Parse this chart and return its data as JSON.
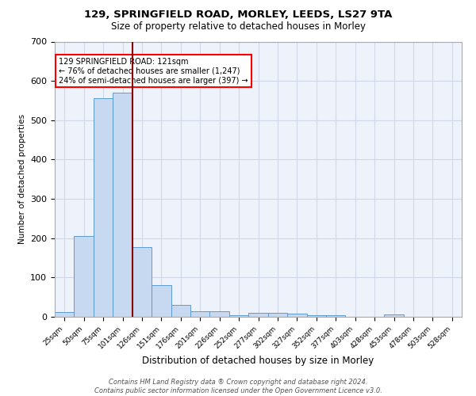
{
  "title1": "129, SPRINGFIELD ROAD, MORLEY, LEEDS, LS27 9TA",
  "title2": "Size of property relative to detached houses in Morley",
  "xlabel": "Distribution of detached houses by size in Morley",
  "ylabel": "Number of detached properties",
  "categories": [
    "25sqm",
    "50sqm",
    "75sqm",
    "101sqm",
    "126sqm",
    "151sqm",
    "176sqm",
    "201sqm",
    "226sqm",
    "252sqm",
    "277sqm",
    "302sqm",
    "327sqm",
    "352sqm",
    "377sqm",
    "403sqm",
    "428sqm",
    "453sqm",
    "478sqm",
    "503sqm",
    "528sqm"
  ],
  "values": [
    12,
    205,
    555,
    570,
    178,
    80,
    30,
    14,
    14,
    5,
    10,
    10,
    8,
    5,
    4,
    0,
    0,
    7,
    0,
    0,
    0
  ],
  "bar_color": "#c6d9f0",
  "bar_edge_color": "#5b9bd5",
  "grid_color": "#d0d8e8",
  "background_color": "#eef2fa",
  "red_line_index": 4,
  "annotation_text": "129 SPRINGFIELD ROAD: 121sqm\n← 76% of detached houses are smaller (1,247)\n24% of semi-detached houses are larger (397) →",
  "annotation_box_color": "white",
  "annotation_box_edge": "red",
  "footer": "Contains HM Land Registry data ® Crown copyright and database right 2024.\nContains public sector information licensed under the Open Government Licence v3.0.",
  "ylim": [
    0,
    700
  ],
  "yticks": [
    0,
    100,
    200,
    300,
    400,
    500,
    600,
    700
  ],
  "title1_fontsize": 9.5,
  "title2_fontsize": 8.5
}
